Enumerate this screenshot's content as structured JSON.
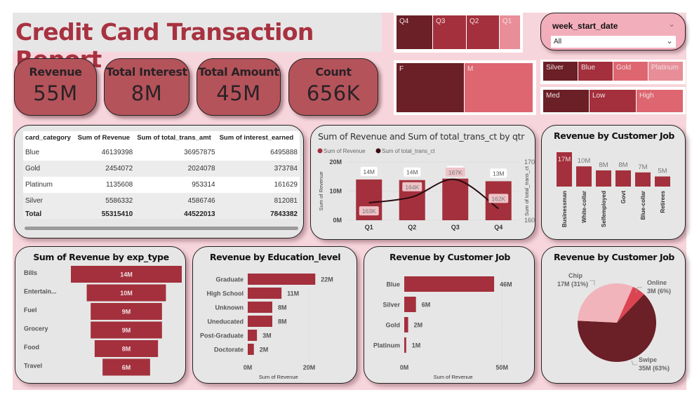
{
  "header": {
    "title": "Credit Card Transaction Report"
  },
  "kpis": [
    {
      "label": "Revenue",
      "value": "55M"
    },
    {
      "label": "Total Interest",
      "value": "8M"
    },
    {
      "label": "Total Amount",
      "value": "45M"
    },
    {
      "label": "Count",
      "value": "656K"
    }
  ],
  "filters": {
    "quarter_tiles": [
      "Q4",
      "Q3",
      "Q2",
      "Q1"
    ],
    "gender_tiles": [
      "F",
      "M"
    ],
    "card_tiles": [
      "Silver",
      "Blue",
      "Gold",
      "Platinum"
    ],
    "utilization_tiles": [
      "Med",
      "Low",
      "High"
    ],
    "week_slicer": {
      "label": "week_start_date",
      "selected": "All",
      "chevron_icon": "chevron-down-icon"
    }
  },
  "colors": {
    "dark": "#6b1f27",
    "primary": "#a3303c",
    "medium": "#dd6670",
    "light": "#e88e98",
    "pale": "#f1b4ba",
    "canvas": "#f7d5dc",
    "card": "#e6e6e6",
    "kpi": "#b5535a",
    "title": "#a83240"
  },
  "table": {
    "columns": [
      "card_category",
      "Sum of Revenue",
      "Sum of total_trans_amt",
      "Sum of interest_earned"
    ],
    "rows": [
      [
        "Blue",
        "46139398",
        "36957875",
        "6495888"
      ],
      [
        "Gold",
        "2454072",
        "2024078",
        "373784"
      ],
      [
        "Platinum",
        "1135608",
        "953314",
        "161629"
      ],
      [
        "Silver",
        "5586332",
        "4586746",
        "812081"
      ]
    ],
    "total": [
      "Total",
      "55315410",
      "44522013",
      "7843382"
    ]
  },
  "chart_data": [
    {
      "id": "combo",
      "type": "bar",
      "title": "Sum of Revenue and Sum of total_trans_ct by qtr",
      "categories": [
        "Q1",
        "Q2",
        "Q3",
        "Q4"
      ],
      "series": [
        {
          "name": "Sum of Revenue",
          "type": "bar",
          "axis": "left",
          "values": [
            14000000,
            13800000,
            14300000,
            13400000
          ],
          "labels": [
            "14M",
            "14M",
            "14M",
            "13M"
          ]
        },
        {
          "name": "Sum of total_trans_ct",
          "type": "line",
          "axis": "right",
          "values": [
            163000,
            164000,
            167000,
            162000
          ],
          "labels": [
            "163K",
            "164K",
            "167K",
            "162K"
          ]
        }
      ],
      "legend": [
        "Sum of Revenue",
        "Sum of total_trans_ct"
      ],
      "legend_position": "top-left",
      "ylabel": "Sum of Revenue",
      "y2label": "Sum of total_trans_ct",
      "ylim": [
        0,
        20000000
      ],
      "y2lim": [
        160000,
        170000
      ],
      "yticks": [
        "0M",
        "10M",
        "20M"
      ],
      "y2ticks": [
        "160K",
        "170K"
      ],
      "grid": true
    },
    {
      "id": "job_column",
      "type": "bar",
      "title": "Revenue by Customer Job",
      "categories": [
        "Businessman",
        "White-collar",
        "Selfemployed",
        "Govt",
        "Blue-collar",
        "Retirees"
      ],
      "values": [
        17,
        10,
        8,
        8,
        7,
        5
      ],
      "labels": [
        "17M",
        "10M",
        "8M",
        "8M",
        "7M",
        "5M"
      ],
      "unit": "M"
    },
    {
      "id": "funnel",
      "type": "bar",
      "title": "Sum of Revenue by exp_type",
      "categories": [
        "Bills",
        "Entertain...",
        "Fuel",
        "Grocery",
        "Food",
        "Travel"
      ],
      "values": [
        14,
        10,
        9,
        9,
        8,
        6
      ],
      "labels": [
        "14M",
        "10M",
        "9M",
        "9M",
        "8M",
        "6M"
      ],
      "unit": "M"
    },
    {
      "id": "education",
      "type": "bar",
      "title": "Revenue by Education_level",
      "categories": [
        "Graduate",
        "High School",
        "Unknown",
        "Uneducated",
        "Post-Graduate",
        "Doctorate"
      ],
      "values": [
        22,
        11,
        8,
        8,
        3,
        2
      ],
      "labels": [
        "22M",
        "11M",
        "8M",
        "8M",
        "3M",
        "2M"
      ],
      "xlabel": "Sum of Revenue",
      "xlim": [
        0,
        24
      ],
      "xticks": [
        {
          "v": 0,
          "t": "0M"
        },
        {
          "v": 20,
          "t": "20M"
        }
      ]
    },
    {
      "id": "card_bar",
      "type": "bar",
      "title": "Revenue by Customer Job",
      "categories": [
        "Blue",
        "Silver",
        "Gold",
        "Platinum"
      ],
      "values": [
        46,
        6,
        2,
        1
      ],
      "labels": [
        "46M",
        "6M",
        "2M",
        "1M"
      ],
      "xlabel": "Sum of Revenue",
      "xlim": [
        0,
        51
      ],
      "xticks": [
        {
          "v": 0,
          "t": "0M"
        },
        {
          "v": 50,
          "t": "50M"
        }
      ]
    },
    {
      "id": "pie",
      "type": "pie",
      "title": "Revenue by Customer Job",
      "slices": [
        {
          "name": "Online",
          "value": 3,
          "percent": 6,
          "label": "3M (6%)"
        },
        {
          "name": "Swipe",
          "value": 35,
          "percent": 63,
          "label": "35M (63%)"
        },
        {
          "name": "Chip",
          "value": 17,
          "percent": 31,
          "label": "17M (31%)"
        }
      ]
    }
  ]
}
